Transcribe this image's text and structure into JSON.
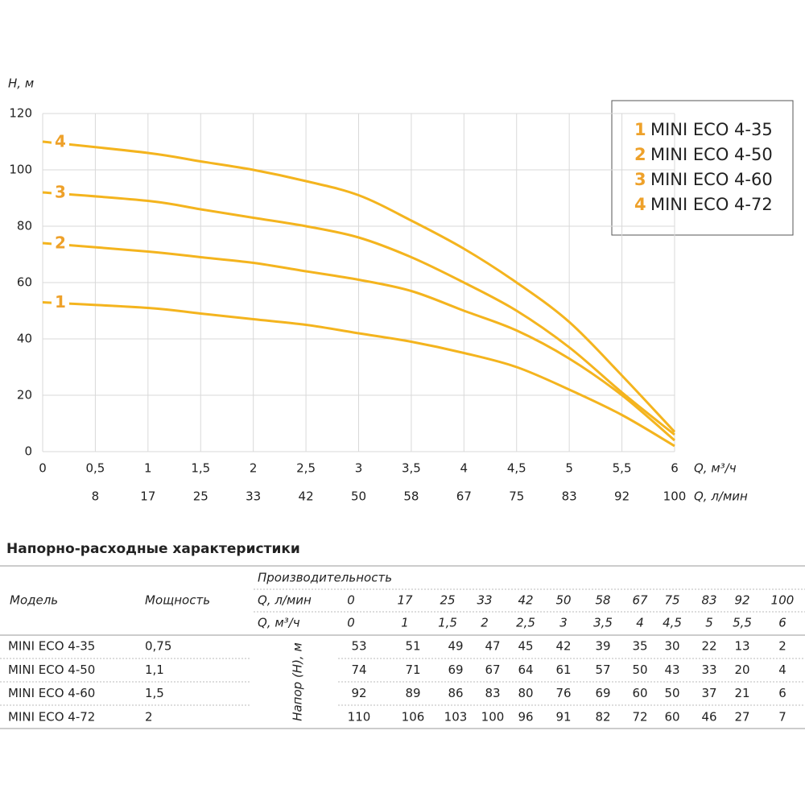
{
  "chart_data": {
    "type": "line",
    "ylabel": "H, м",
    "xlabel": "Q, м³/ч",
    "x2label": "Q, л/мин",
    "x": [
      0,
      1,
      1.5,
      2,
      2.5,
      3,
      3.5,
      4,
      4.5,
      5,
      5.5,
      6
    ],
    "xlim": [
      0,
      6
    ],
    "ylim": [
      0,
      120
    ],
    "xticks": [
      0,
      {
        "value": 0.5,
        "label": "0,5"
      },
      1,
      {
        "value": 1.5,
        "label": "1,5"
      },
      2,
      {
        "value": 2.5,
        "label": "2,5"
      },
      3,
      {
        "value": 3.5,
        "label": "3,5"
      },
      4,
      {
        "value": 4.5,
        "label": "4,5"
      },
      5,
      {
        "value": 5.5,
        "label": "5,5"
      },
      6
    ],
    "x2ticks": [
      {
        "value": 0.5,
        "label": "8"
      },
      {
        "value": 1,
        "label": "17"
      },
      {
        "value": 1.5,
        "label": "25"
      },
      {
        "value": 2,
        "label": "33"
      },
      {
        "value": 2.5,
        "label": "42"
      },
      {
        "value": 3,
        "label": "50"
      },
      {
        "value": 3.5,
        "label": "58"
      },
      {
        "value": 4,
        "label": "67"
      },
      {
        "value": 4.5,
        "label": "75"
      },
      {
        "value": 5,
        "label": "83"
      },
      {
        "value": 5.5,
        "label": "92"
      },
      {
        "value": 6,
        "label": "100"
      }
    ],
    "yticks": [
      0,
      20,
      40,
      60,
      80,
      100,
      120
    ],
    "grid": true,
    "legend": "upper right",
    "label_color": "#eea12a",
    "series": [
      {
        "label": "1",
        "name": "MINI ECO 4-35",
        "color": "#f4b41e",
        "values": [
          53,
          51,
          49,
          47,
          45,
          42,
          39,
          35,
          30,
          22,
          13,
          2
        ]
      },
      {
        "label": "2",
        "name": "MINI ECO 4-50",
        "color": "#f4b41e",
        "values": [
          74,
          71,
          69,
          67,
          64,
          61,
          57,
          50,
          43,
          33,
          20,
          4
        ]
      },
      {
        "label": "3",
        "name": "MINI ECO 4-60",
        "color": "#f4b41e",
        "values": [
          92,
          89,
          86,
          83,
          80,
          76,
          69,
          60,
          50,
          37,
          21,
          6
        ]
      },
      {
        "label": "4",
        "name": "MINI ECO 4-72",
        "color": "#f4b41e",
        "values": [
          110,
          106,
          103,
          100,
          96,
          91,
          82,
          72,
          60,
          46,
          27,
          7
        ]
      }
    ]
  },
  "table": {
    "title": "Напорно-расходные характеристики",
    "header_flow": "Производительность",
    "header_model": "Модель",
    "header_power": "Мощность",
    "lpm_label": "Q, л/мин",
    "m3h_label": "Q, м³/ч",
    "header_head": "Напор (H), м",
    "lpm": [
      "0",
      "17",
      "25",
      "33",
      "42",
      "50",
      "58",
      "67",
      "75",
      "83",
      "92",
      "100"
    ],
    "m3h": [
      "0",
      "1",
      "1,5",
      "2",
      "2,5",
      "3",
      "3,5",
      "4",
      "4,5",
      "5",
      "5,5",
      "6"
    ],
    "power": [
      "0,75",
      "1,1",
      "1,5",
      "2"
    ]
  }
}
